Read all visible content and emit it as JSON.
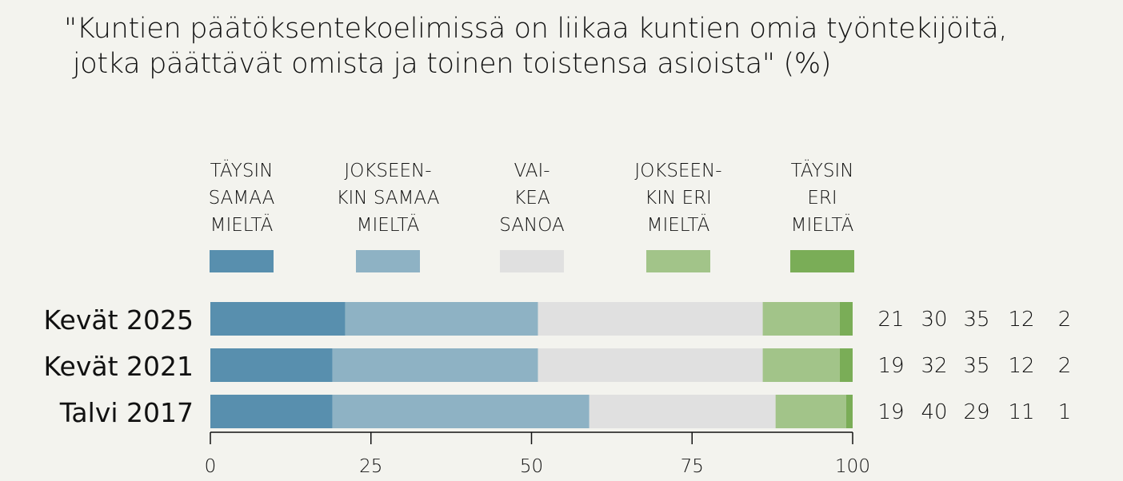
{
  "chart_data": {
    "type": "bar",
    "orientation": "horizontal-stacked",
    "title_lines": [
      "\"Kuntien päätöksentekoelimissä on liikaa kuntien omia työntekijöitä,",
      " jotka päättävät omista ja toinen toistensa asioista\" (%)"
    ],
    "categories": [
      "Kevät 2025",
      "Kevät 2021",
      "Talvi 2017"
    ],
    "series": [
      {
        "name": [
          "TÄYSIN",
          "SAMAA",
          "MIELTÄ"
        ],
        "color": "#588fae",
        "values": [
          21,
          19,
          19
        ]
      },
      {
        "name": [
          "JOKSEEN-",
          "KIN SAMAA",
          "MIELTÄ"
        ],
        "color": "#8eb2c4",
        "values": [
          30,
          32,
          40
        ]
      },
      {
        "name": [
          "VAI-",
          "KEA",
          "SANOA"
        ],
        "color": "#e0e0e0",
        "values": [
          35,
          35,
          29
        ]
      },
      {
        "name": [
          "JOKSEEN-",
          "KIN ERI",
          "MIELTÄ"
        ],
        "color": "#a2c489",
        "values": [
          12,
          12,
          11
        ]
      },
      {
        "name": [
          "TÄYSIN",
          "ERI",
          "MIELTÄ"
        ],
        "color": "#7aad57",
        "values": [
          2,
          2,
          1
        ]
      }
    ],
    "xlim": [
      0,
      100
    ],
    "xticks": [
      "0",
      "25",
      "50",
      "75",
      "100"
    ],
    "legend_placement": "top",
    "grid": false
  }
}
